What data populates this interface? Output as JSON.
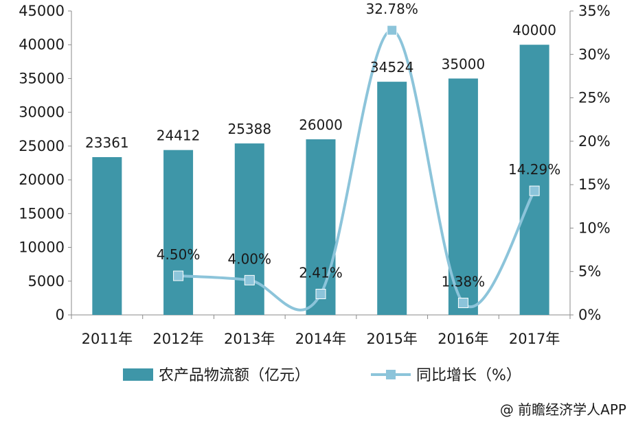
{
  "chart_data": {
    "type": "bar",
    "categories": [
      "2011年",
      "2012年",
      "2013年",
      "2014年",
      "2015年",
      "2016年",
      "2017年"
    ],
    "series": [
      {
        "name": "农产品物流额（亿元）",
        "type": "bar",
        "axis": "left",
        "values": [
          23361,
          24412,
          25388,
          26000,
          34524,
          35000,
          40000
        ],
        "labels": [
          "23361",
          "24412",
          "25388",
          "26000",
          "34524",
          "35000",
          "40000"
        ],
        "color": "#3e96a8"
      },
      {
        "name": "同比增长（%）",
        "type": "line",
        "axis": "right",
        "smooth": true,
        "values": [
          null,
          4.5,
          4.0,
          2.41,
          32.78,
          1.38,
          14.29
        ],
        "labels": [
          "",
          "4.50%",
          "4.00%",
          "2.41%",
          "32.78%",
          "1.38%",
          "14.29%"
        ],
        "color": "#8cc4da"
      }
    ],
    "y_left": {
      "range": [
        0,
        45000
      ],
      "ticks": [
        "0",
        "5000",
        "10000",
        "15000",
        "20000",
        "25000",
        "30000",
        "35000",
        "40000",
        "45000"
      ]
    },
    "y_right": {
      "range": [
        0,
        35
      ],
      "ticks": [
        "0%",
        "5%",
        "10%",
        "15%",
        "20%",
        "25%",
        "30%",
        "35%"
      ]
    },
    "legend": "bottom",
    "grid": false
  },
  "credit": "@ 前瞻经济学人APP"
}
